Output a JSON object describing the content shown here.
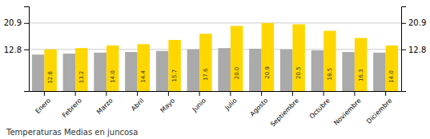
{
  "chart_data": {
    "type": "bar",
    "title": "Temperaturas Medias en juncosa",
    "categories": [
      "Enero",
      "Febrero",
      "Marzo",
      "Abril",
      "Mayo",
      "Junio",
      "Julio",
      "Agosto",
      "Septiembre",
      "Octubre",
      "Noviembre",
      "Diciembre"
    ],
    "series": [
      {
        "color": "#AAAAAA",
        "values": [
          11.2,
          11.5,
          11.8,
          12.0,
          12.3,
          12.8,
          13.2,
          13.0,
          12.8,
          12.5,
          12.0,
          11.8
        ]
      },
      {
        "color": "#FFD700",
        "values": [
          12.8,
          13.2,
          14.0,
          14.4,
          15.7,
          17.6,
          20.0,
          20.9,
          20.5,
          18.5,
          16.3,
          14.0
        ],
        "data_labels": true,
        "value_labels": [
          "12.8",
          "13.2",
          "14.0",
          "14.4",
          "15.7",
          "17.6",
          "20.0",
          "20.9",
          "20.5",
          "18.5",
          "16.3",
          "14.0"
        ]
      }
    ],
    "ylim": [
      0,
      26.0
    ],
    "yticks": [
      12.8,
      20.9
    ],
    "y2lim": [
      0,
      26.0
    ],
    "y2ticks": [
      12.8,
      20.9
    ],
    "grid": true
  }
}
